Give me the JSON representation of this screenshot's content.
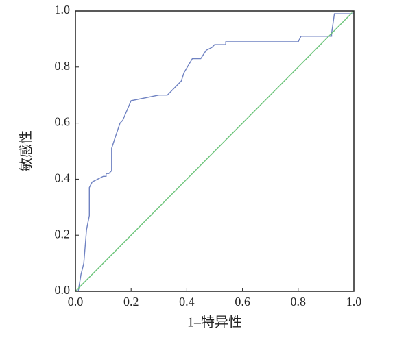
{
  "chart_data": {
    "type": "line",
    "x_label": "1–特异性",
    "y_label": "敏感性",
    "xlim": [
      0,
      1
    ],
    "ylim": [
      0,
      1
    ],
    "xticks": [
      {
        "value": 0,
        "label": "0.0"
      },
      0.2,
      0.4,
      0.6,
      0.8,
      {
        "value": 1,
        "label": "1.0"
      }
    ],
    "yticks": [
      {
        "value": 0,
        "label": "0.0"
      },
      0.2,
      0.4,
      0.6,
      0.8,
      {
        "value": 1,
        "label": "1.0"
      }
    ],
    "grid": false,
    "series": [
      {
        "color": "#6f82c2",
        "x": [
          0.01,
          0.02,
          0.03,
          0.04,
          0.05,
          0.05,
          0.06,
          0.08,
          0.1,
          0.11,
          0.11,
          0.12,
          0.13,
          0.13,
          0.14,
          0.16,
          0.17,
          0.2,
          0.3,
          0.33,
          0.38,
          0.39,
          0.42,
          0.45,
          0.47,
          0.49,
          0.5,
          0.54,
          0.54,
          0.8,
          0.81,
          0.92,
          0.92,
          0.93,
          1
        ],
        "values": [
          0,
          0.06,
          0.1,
          0.22,
          0.27,
          0.37,
          0.39,
          0.4,
          0.41,
          0.41,
          0.42,
          0.42,
          0.43,
          0.51,
          0.54,
          0.6,
          0.61,
          0.68,
          0.7,
          0.7,
          0.75,
          0.78,
          0.83,
          0.83,
          0.86,
          0.87,
          0.88,
          0.88,
          0.89,
          0.89,
          0.91,
          0.91,
          0.92,
          0.99,
          0.99
        ]
      },
      {
        "color": "#6cc47a",
        "x": [
          0,
          1
        ],
        "values": [
          0,
          1
        ]
      }
    ]
  }
}
